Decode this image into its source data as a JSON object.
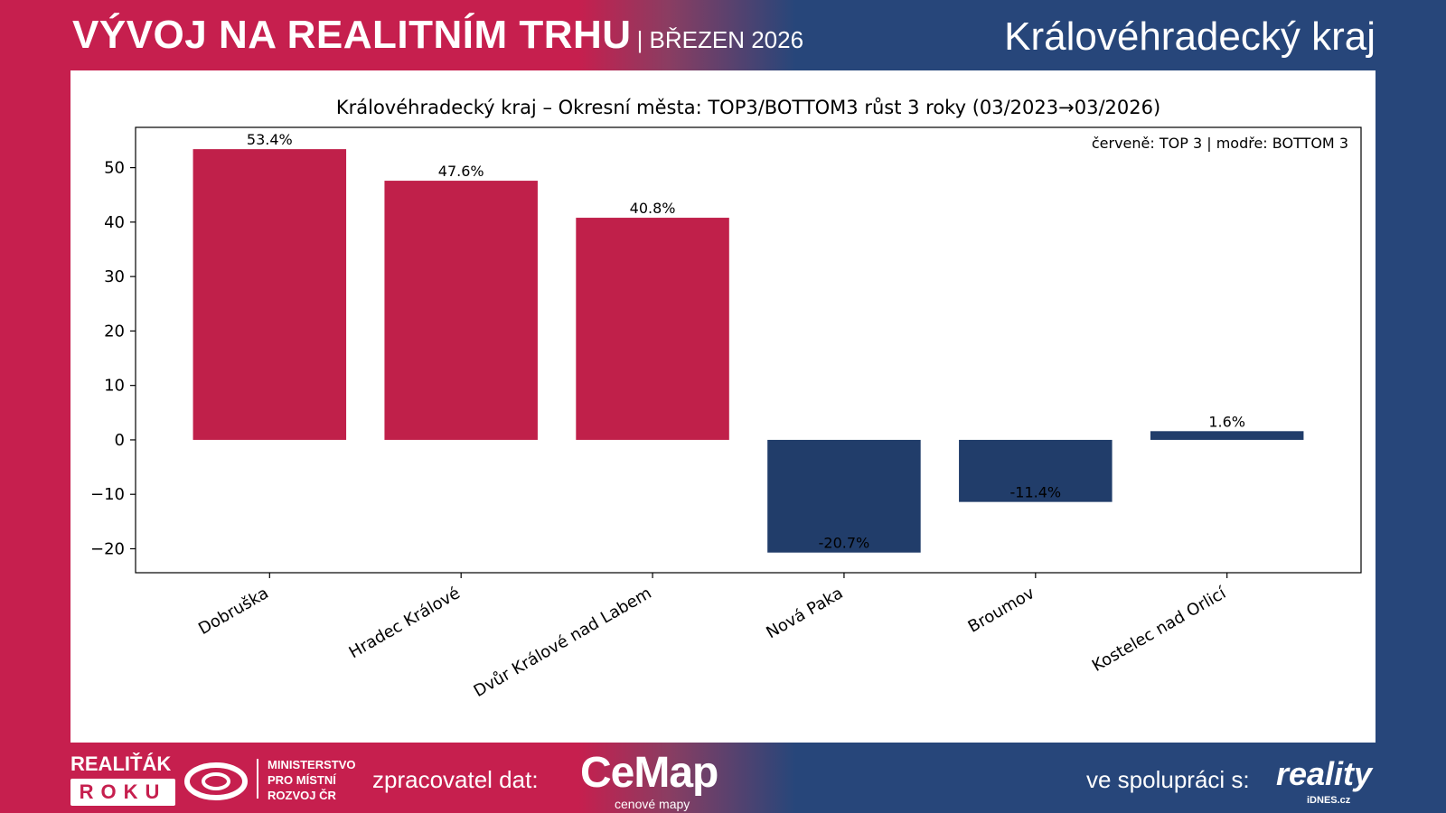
{
  "header": {
    "title": "VÝVOJ NA REALITNÍM TRHU",
    "subtitle": "| BŘEZEN 2026",
    "region": "Královéhradecký kraj"
  },
  "footer": {
    "logo1_top": "REALIŤÁK",
    "logo1_bottom": "ROKU",
    "ministry": [
      "MINISTERSTVO",
      "PRO MÍSTNÍ",
      "ROZVOJ ČR"
    ],
    "processor_label": "zpracovatel dat:",
    "cemap": "CeMap",
    "cemap_sub": "cenové mapy",
    "partner_label": "ve spolupráci s:",
    "partner": "reality",
    "partner_sub": "iDNES.cz"
  },
  "colors": {
    "top": "#c0204a",
    "bottom": "#213d6a"
  },
  "chart_data": {
    "type": "bar",
    "title": "Královéhradecký kraj – Okresní města: TOP3/BOTTOM3 růst 3 roky (03/2023→03/2026)",
    "annotation": "červeně: TOP 3 | modře: BOTTOM 3",
    "categories": [
      "Dobruška",
      "Hradec Králové",
      "Dvůr Králové nad Labem",
      "Nová Paka",
      "Broumov",
      "Kostelec nad Orlicí"
    ],
    "values": [
      53.4,
      47.6,
      40.8,
      -20.7,
      -11.4,
      1.6
    ],
    "labels": [
      "53.4%",
      "47.6%",
      "40.8%",
      "-20.7%",
      "-11.4%",
      "1.6%"
    ],
    "groups": [
      "top",
      "top",
      "top",
      "bottom",
      "bottom",
      "bottom"
    ],
    "yticks": [
      -20,
      -10,
      0,
      10,
      20,
      30,
      40,
      50
    ],
    "ytick_labels": [
      "−20",
      "−10",
      "0",
      "10",
      "20",
      "30",
      "40",
      "50"
    ],
    "ylim": [
      -24.4,
      57.4
    ],
    "xlabel": "",
    "ylabel": "",
    "grid": false
  }
}
